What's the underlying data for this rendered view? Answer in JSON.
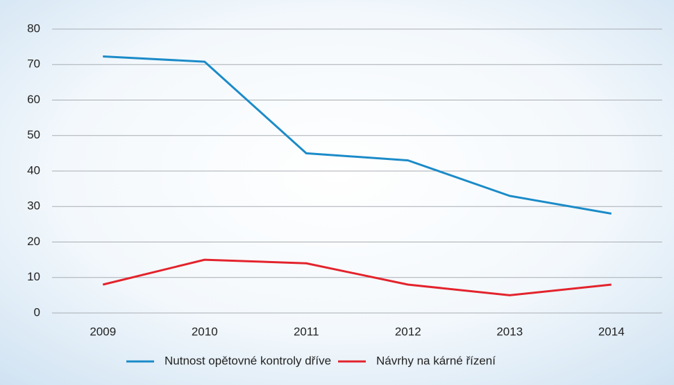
{
  "chart_data": {
    "type": "line",
    "categories": [
      "2009",
      "2010",
      "2011",
      "2012",
      "2013",
      "2014"
    ],
    "series": [
      {
        "name": "Nutnost opětovné kontroly dříve",
        "color": "#1b8bc8",
        "values": [
          72.3,
          70.8,
          45,
          43,
          33,
          28
        ]
      },
      {
        "name": "Návrhy na kárné řízení",
        "color": "#e3232c",
        "values": [
          8,
          15,
          14,
          8,
          5,
          8
        ]
      }
    ],
    "ylim": [
      0,
      80
    ],
    "yticks": [
      0,
      10,
      20,
      30,
      40,
      50,
      60,
      70,
      80
    ],
    "grid": true,
    "legend": "bottom"
  }
}
